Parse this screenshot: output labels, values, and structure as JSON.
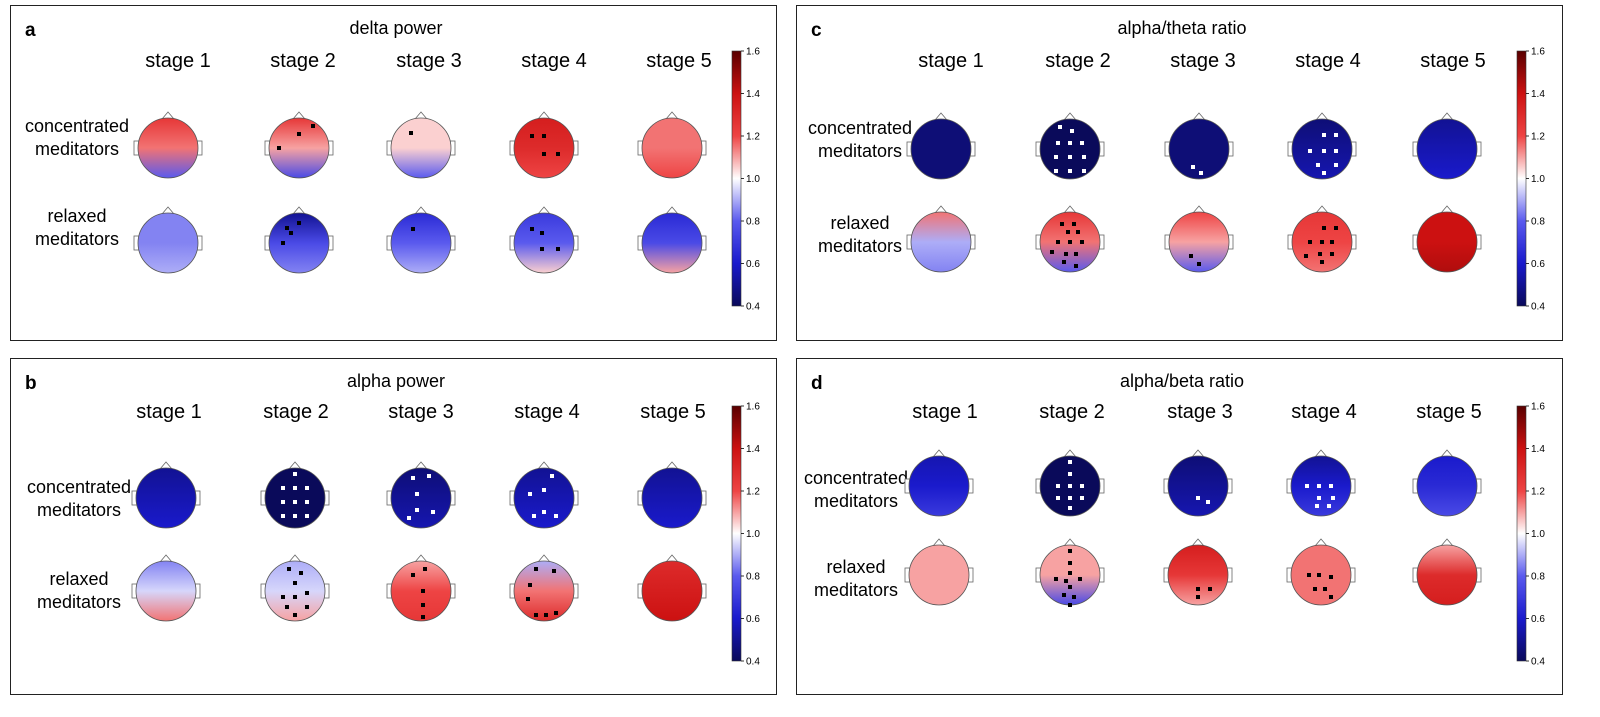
{
  "stage_labels": [
    "stage 1",
    "stage 2",
    "stage 3",
    "stage 4",
    "stage 5"
  ],
  "row_labels": {
    "concentrated": [
      "concentrated",
      "meditators"
    ],
    "relaxed": [
      "relaxed",
      "meditators"
    ]
  },
  "colorbar": {
    "ticks": [
      "1.6",
      "1.4",
      "1.2",
      "1.0",
      "0.8",
      "0.6",
      "0.4"
    ],
    "range": [
      0.4,
      1.6
    ],
    "colors": [
      "#0a0a5a",
      "#1a1acc",
      "#5a5aee",
      "#ffffff",
      "#ee4444",
      "#cc1111",
      "#5a0000"
    ]
  },
  "panels": [
    {
      "letter": "a",
      "title": "delta power",
      "maps": [
        {
          "row": "concentrated",
          "stage": 1,
          "base": 1.15,
          "front": 1.25,
          "back": 0.8,
          "dots": []
        },
        {
          "row": "concentrated",
          "stage": 2,
          "base": 1.1,
          "front": 1.25,
          "back": 0.75,
          "dots": [
            [
              0,
              -14
            ],
            [
              14,
              -22
            ],
            [
              -20,
              0
            ]
          ]
        },
        {
          "row": "concentrated",
          "stage": 3,
          "base": 1.05,
          "front": 1.05,
          "back": 0.8,
          "dots": [
            [
              -10,
              -15
            ]
          ]
        },
        {
          "row": "concentrated",
          "stage": 4,
          "base": 1.3,
          "front": 1.35,
          "back": 1.2,
          "dots": [
            [
              -12,
              -12
            ],
            [
              0,
              -12
            ],
            [
              0,
              6
            ],
            [
              14,
              6
            ]
          ]
        },
        {
          "row": "concentrated",
          "stage": 5,
          "base": 1.15,
          "front": 1.15,
          "back": 1.2,
          "dots": []
        },
        {
          "row": "relaxed",
          "stage": 1,
          "base": 0.85,
          "front": 0.85,
          "back": 0.9,
          "dots": []
        },
        {
          "row": "relaxed",
          "stage": 2,
          "base": 0.75,
          "front": 0.5,
          "back": 0.85,
          "dots": [
            [
              -12,
              -15
            ],
            [
              0,
              -20
            ],
            [
              -8,
              -10
            ],
            [
              -16,
              0
            ]
          ]
        },
        {
          "row": "relaxed",
          "stage": 3,
          "base": 0.8,
          "front": 0.65,
          "back": 0.9,
          "dots": [
            [
              -8,
              -14
            ]
          ]
        },
        {
          "row": "relaxed",
          "stage": 4,
          "base": 0.8,
          "front": 0.7,
          "back": 1.05,
          "dots": [
            [
              -12,
              -14
            ],
            [
              -2,
              -10
            ],
            [
              -2,
              6
            ],
            [
              14,
              6
            ]
          ]
        },
        {
          "row": "relaxed",
          "stage": 5,
          "base": 0.75,
          "front": 0.65,
          "back": 1.1,
          "dots": []
        }
      ]
    },
    {
      "letter": "b",
      "title": "alpha power",
      "maps": [
        {
          "row": "concentrated",
          "stage": 1,
          "base": 0.55,
          "front": 0.5,
          "back": 0.6,
          "dots": []
        },
        {
          "row": "concentrated",
          "stage": 2,
          "base": 0.35,
          "front": 0.3,
          "back": 0.4,
          "dots": [
            [
              0,
              -24
            ],
            [
              0,
              -10
            ],
            [
              0,
              4
            ],
            [
              0,
              18
            ],
            [
              -12,
              -10
            ],
            [
              12,
              -10
            ],
            [
              -12,
              4
            ],
            [
              12,
              4
            ],
            [
              -12,
              18
            ],
            [
              12,
              18
            ]
          ]
        },
        {
          "row": "concentrated",
          "stage": 3,
          "base": 0.5,
          "front": 0.45,
          "back": 0.55,
          "dots": [
            [
              -8,
              -20
            ],
            [
              8,
              -22
            ],
            [
              -4,
              -4
            ],
            [
              -4,
              12
            ],
            [
              12,
              14
            ],
            [
              -12,
              20
            ]
          ]
        },
        {
          "row": "concentrated",
          "stage": 4,
          "base": 0.55,
          "front": 0.5,
          "back": 0.6,
          "dots": [
            [
              8,
              -22
            ],
            [
              0,
              -8
            ],
            [
              -14,
              -4
            ],
            [
              0,
              14
            ],
            [
              12,
              18
            ],
            [
              -10,
              18
            ]
          ]
        },
        {
          "row": "concentrated",
          "stage": 5,
          "base": 0.55,
          "front": 0.5,
          "back": 0.6,
          "dots": []
        },
        {
          "row": "relaxed",
          "stage": 1,
          "base": 0.95,
          "front": 0.85,
          "back": 1.15,
          "dots": []
        },
        {
          "row": "relaxed",
          "stage": 2,
          "base": 0.95,
          "front": 0.9,
          "back": 1.1,
          "dots": [
            [
              -6,
              -22
            ],
            [
              6,
              -18
            ],
            [
              0,
              -8
            ],
            [
              -12,
              6
            ],
            [
              0,
              6
            ],
            [
              12,
              2
            ],
            [
              -8,
              16
            ],
            [
              0,
              24
            ],
            [
              12,
              16
            ]
          ]
        },
        {
          "row": "relaxed",
          "stage": 3,
          "base": 1.2,
          "front": 1.1,
          "back": 1.25,
          "dots": [
            [
              -8,
              -16
            ],
            [
              4,
              -22
            ],
            [
              2,
              0
            ],
            [
              2,
              14
            ],
            [
              2,
              26
            ]
          ]
        },
        {
          "row": "relaxed",
          "stage": 4,
          "base": 1.15,
          "front": 0.9,
          "back": 1.3,
          "dots": [
            [
              -8,
              -22
            ],
            [
              10,
              -20
            ],
            [
              -14,
              -6
            ],
            [
              -16,
              8
            ],
            [
              -8,
              24
            ],
            [
              2,
              24
            ],
            [
              12,
              22
            ]
          ]
        },
        {
          "row": "relaxed",
          "stage": 5,
          "base": 1.35,
          "front": 1.3,
          "back": 1.4,
          "dots": []
        }
      ]
    },
    {
      "letter": "c",
      "title": "alpha/theta ratio",
      "maps": [
        {
          "row": "concentrated",
          "stage": 1,
          "base": 0.45,
          "front": 0.45,
          "back": 0.45,
          "dots": []
        },
        {
          "row": "concentrated",
          "stage": 2,
          "base": 0.35,
          "front": 0.35,
          "back": 0.35,
          "dots": [
            [
              -10,
              -22
            ],
            [
              2,
              -18
            ],
            [
              -12,
              -6
            ],
            [
              0,
              -6
            ],
            [
              12,
              -6
            ],
            [
              -14,
              8
            ],
            [
              0,
              8
            ],
            [
              14,
              8
            ],
            [
              -14,
              22
            ],
            [
              0,
              22
            ],
            [
              14,
              22
            ]
          ]
        },
        {
          "row": "concentrated",
          "stage": 3,
          "base": 0.45,
          "front": 0.45,
          "back": 0.45,
          "dots": [
            [
              -6,
              18
            ],
            [
              2,
              24
            ]
          ]
        },
        {
          "row": "concentrated",
          "stage": 4,
          "base": 0.5,
          "front": 0.45,
          "back": 0.55,
          "dots": [
            [
              2,
              -14
            ],
            [
              14,
              -14
            ],
            [
              -12,
              2
            ],
            [
              2,
              2
            ],
            [
              14,
              2
            ],
            [
              -4,
              16
            ],
            [
              14,
              16
            ],
            [
              2,
              24
            ]
          ]
        },
        {
          "row": "concentrated",
          "stage": 5,
          "base": 0.55,
          "front": 0.5,
          "back": 0.6,
          "dots": []
        },
        {
          "row": "relaxed",
          "stage": 1,
          "base": 0.9,
          "front": 1.15,
          "back": 0.85,
          "dots": []
        },
        {
          "row": "relaxed",
          "stage": 2,
          "base": 1.15,
          "front": 1.25,
          "back": 0.8,
          "dots": [
            [
              -8,
              -18
            ],
            [
              4,
              -18
            ],
            [
              -2,
              -10
            ],
            [
              8,
              -10
            ],
            [
              -12,
              0
            ],
            [
              0,
              0
            ],
            [
              12,
              0
            ],
            [
              -18,
              10
            ],
            [
              -4,
              12
            ],
            [
              6,
              12
            ],
            [
              -6,
              20
            ],
            [
              6,
              24
            ]
          ]
        },
        {
          "row": "relaxed",
          "stage": 3,
          "base": 1.1,
          "front": 1.2,
          "back": 0.8,
          "dots": [
            [
              -8,
              14
            ],
            [
              0,
              22
            ]
          ]
        },
        {
          "row": "relaxed",
          "stage": 4,
          "base": 1.2,
          "front": 1.25,
          "back": 1.15,
          "dots": [
            [
              2,
              -14
            ],
            [
              14,
              -14
            ],
            [
              -12,
              0
            ],
            [
              0,
              0
            ],
            [
              10,
              0
            ],
            [
              -16,
              14
            ],
            [
              -2,
              12
            ],
            [
              10,
              12
            ],
            [
              0,
              20
            ]
          ]
        },
        {
          "row": "relaxed",
          "stage": 5,
          "base": 1.4,
          "front": 1.4,
          "back": 1.45,
          "dots": []
        }
      ]
    },
    {
      "letter": "d",
      "title": "alpha/beta ratio",
      "maps": [
        {
          "row": "concentrated",
          "stage": 1,
          "base": 0.6,
          "front": 0.55,
          "back": 0.7,
          "dots": []
        },
        {
          "row": "concentrated",
          "stage": 2,
          "base": 0.35,
          "front": 0.35,
          "back": 0.35,
          "dots": [
            [
              0,
              -24
            ],
            [
              0,
              -12
            ],
            [
              -12,
              0
            ],
            [
              0,
              0
            ],
            [
              12,
              0
            ],
            [
              -12,
              12
            ],
            [
              0,
              12
            ],
            [
              12,
              12
            ],
            [
              0,
              22
            ]
          ]
        },
        {
          "row": "concentrated",
          "stage": 3,
          "base": 0.5,
          "front": 0.45,
          "back": 0.55,
          "dots": [
            [
              0,
              12
            ],
            [
              10,
              16
            ]
          ]
        },
        {
          "row": "concentrated",
          "stage": 4,
          "base": 0.6,
          "front": 0.5,
          "back": 0.7,
          "dots": [
            [
              -14,
              0
            ],
            [
              -2,
              0
            ],
            [
              10,
              0
            ],
            [
              -2,
              12
            ],
            [
              12,
              12
            ],
            [
              -4,
              20
            ],
            [
              8,
              20
            ]
          ]
        },
        {
          "row": "concentrated",
          "stage": 5,
          "base": 0.65,
          "front": 0.6,
          "back": 0.75,
          "dots": []
        },
        {
          "row": "relaxed",
          "stage": 1,
          "base": 1.1,
          "front": 1.1,
          "back": 1.1,
          "dots": []
        },
        {
          "row": "relaxed",
          "stage": 2,
          "base": 1.1,
          "front": 1.1,
          "back": 0.75,
          "dots": [
            [
              0,
              -24
            ],
            [
              0,
              -12
            ],
            [
              0,
              -2
            ],
            [
              -14,
              4
            ],
            [
              -4,
              6
            ],
            [
              10,
              4
            ],
            [
              0,
              12
            ],
            [
              -6,
              20
            ],
            [
              4,
              22
            ],
            [
              0,
              30
            ]
          ]
        },
        {
          "row": "relaxed",
          "stage": 3,
          "base": 1.25,
          "front": 1.35,
          "back": 1.1,
          "dots": [
            [
              0,
              14
            ],
            [
              12,
              14
            ],
            [
              0,
              22
            ]
          ]
        },
        {
          "row": "relaxed",
          "stage": 4,
          "base": 1.15,
          "front": 1.15,
          "back": 1.15,
          "dots": [
            [
              -12,
              0
            ],
            [
              -2,
              0
            ],
            [
              10,
              2
            ],
            [
              -6,
              14
            ],
            [
              4,
              14
            ],
            [
              10,
              22
            ]
          ]
        },
        {
          "row": "relaxed",
          "stage": 5,
          "base": 1.3,
          "front": 1.1,
          "back": 1.35,
          "dots": []
        }
      ]
    }
  ]
}
